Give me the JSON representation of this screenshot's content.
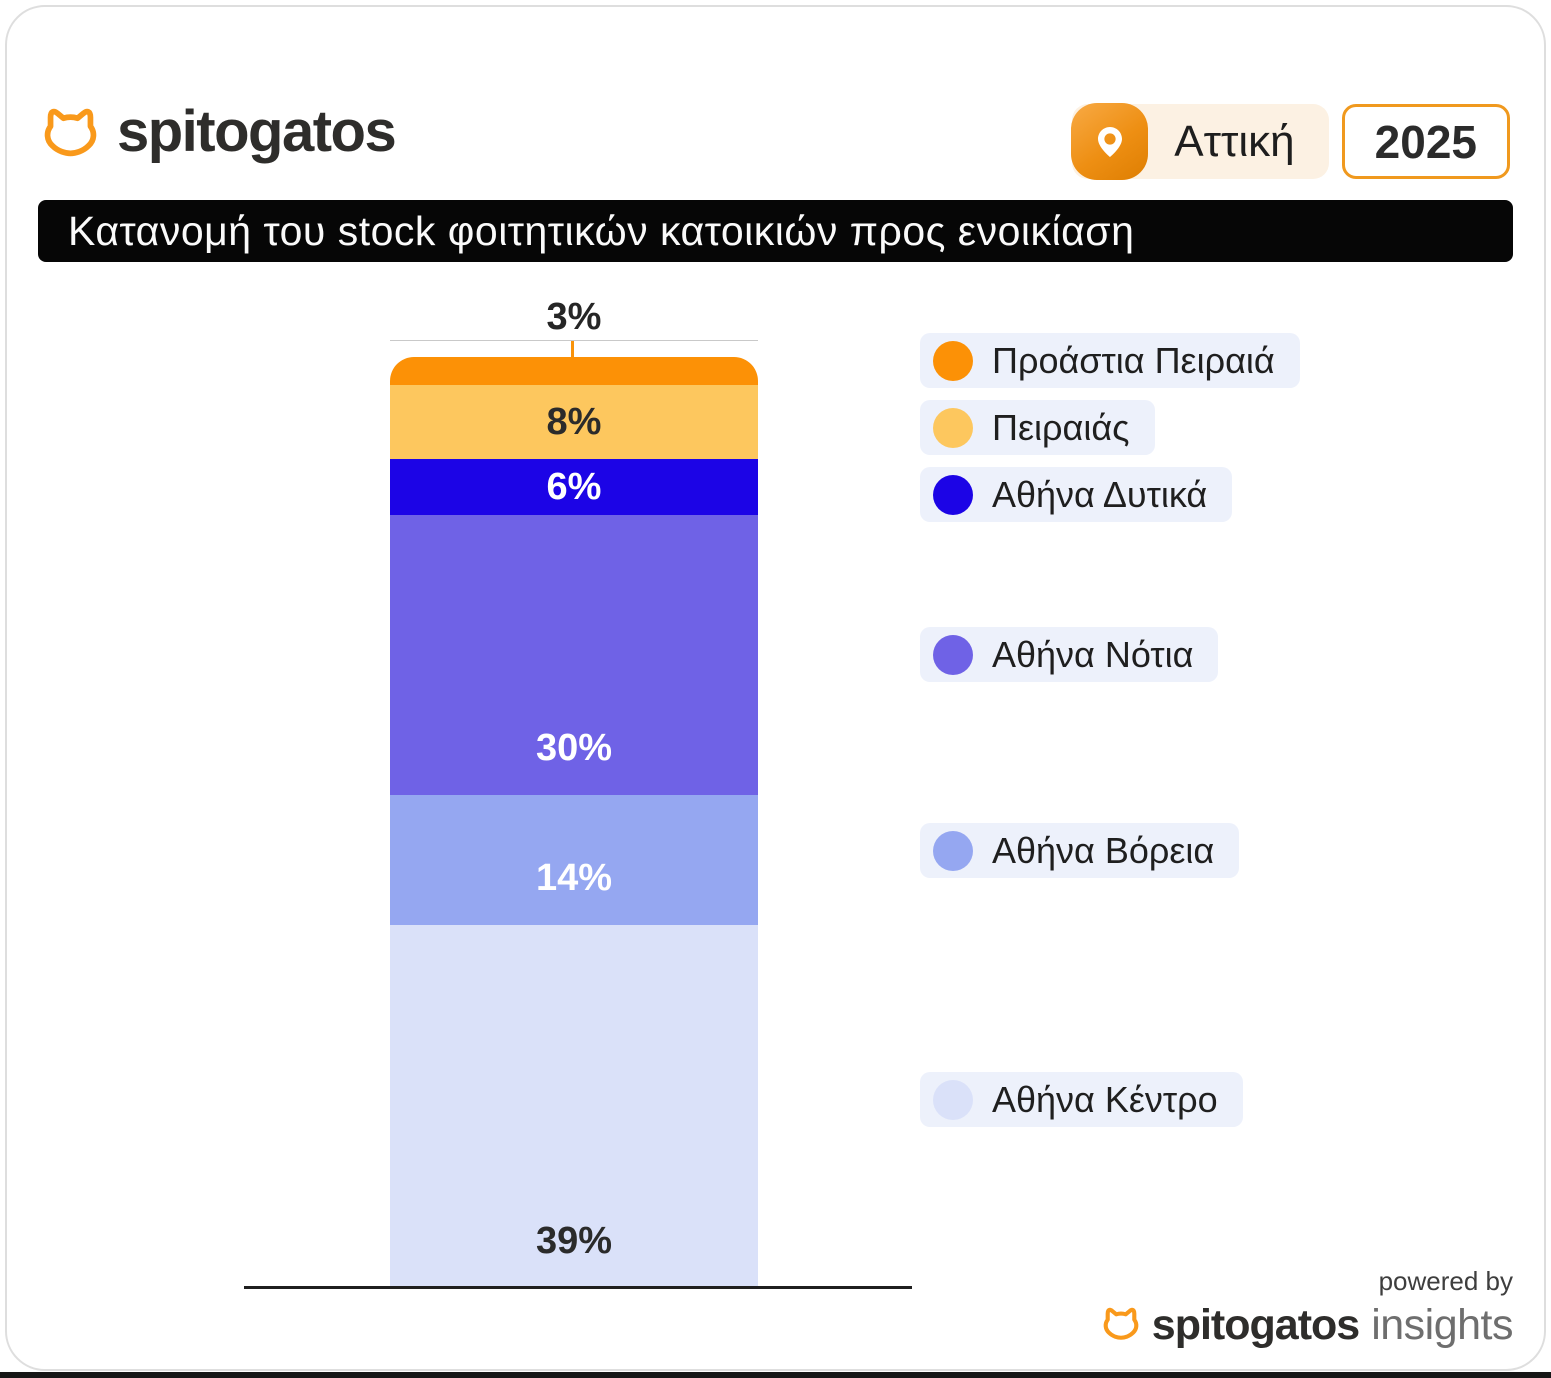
{
  "header": {
    "brand": "spitogatos",
    "location": "Αττική",
    "year": "2025"
  },
  "title": "Κατανομή του stock φοιτητικών κατοικιών προς ενοικίαση",
  "footer": {
    "powered_by": "powered by",
    "brand": "spitogatos",
    "suffix": "insights"
  },
  "colors": {
    "brand_orange": "#F9991B",
    "banner_bg": "#060606",
    "legend_pill_bg": "#EDF1FB",
    "location_pill_bg": "#FCF1E3",
    "year_border": "#F0991E",
    "axis": "#1F1F1F"
  },
  "chart_data": {
    "type": "bar",
    "stacked": true,
    "orientation": "vertical",
    "title": "Κατανομή του stock φοιτητικών κατοικιών προς ενοικίαση",
    "value_suffix": "%",
    "ylim": [
      0,
      100
    ],
    "grid": false,
    "legend_position": "right",
    "categories": [
      "Προάστια Πειραιά",
      "Πειραιάς",
      "Αθήνα Δυτικά",
      "Αθήνα Νότια",
      "Αθήνα Βόρεια",
      "Αθήνα Κέντρο"
    ],
    "series": [
      {
        "name": "Προάστια Πειραιά",
        "value": 3,
        "color": "#FC9106",
        "label_color": "#262626",
        "label_outside": true
      },
      {
        "name": "Πειραιάς",
        "value": 8,
        "color": "#FDC75E",
        "label_color": "#2B2B2B"
      },
      {
        "name": "Αθήνα Δυτικά",
        "value": 6,
        "color": "#1C04E6",
        "label_color": "#FFFFFF"
      },
      {
        "name": "Αθήνα Νότια",
        "value": 30,
        "color": "#6F62E6",
        "label_color": "#FFFFFF"
      },
      {
        "name": "Αθήνα Βόρεια",
        "value": 14,
        "color": "#95A7F1",
        "label_color": "#FFFFFF"
      },
      {
        "name": "Αθήνα Κέντρο",
        "value": 39,
        "color": "#DAE1F9",
        "label_color": "#2B2B2B"
      }
    ]
  }
}
